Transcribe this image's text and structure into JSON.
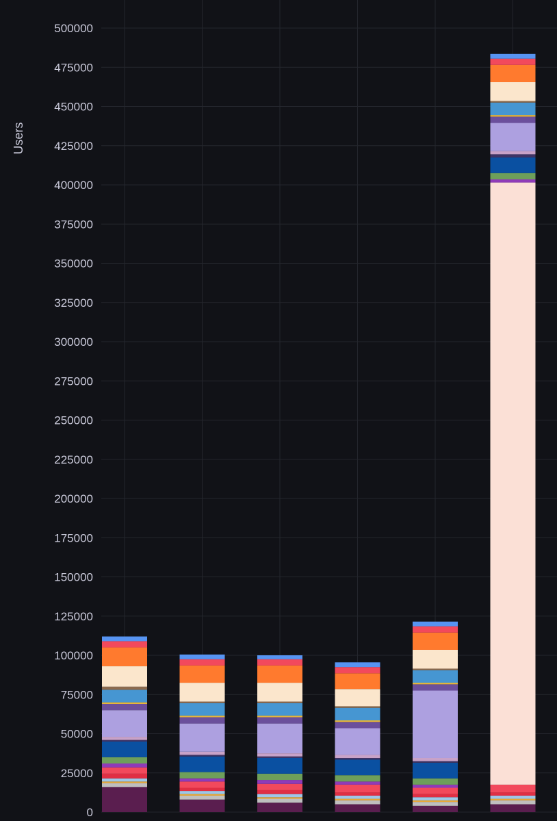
{
  "chart_data": {
    "type": "bar",
    "stacked": true,
    "title": "",
    "xlabel": "",
    "ylabel": "Users",
    "ylim": [
      0,
      500000
    ],
    "yticks": [
      0,
      25000,
      50000,
      75000,
      100000,
      125000,
      150000,
      175000,
      200000,
      225000,
      250000,
      275000,
      300000,
      325000,
      350000,
      375000,
      400000,
      425000,
      450000,
      475000,
      500000
    ],
    "grid": true,
    "legend": "none",
    "categories": [
      "",
      "",
      "",
      "",
      "",
      ""
    ],
    "series": [
      {
        "color": "#5a1e4f",
        "values": [
          16000,
          8000,
          6000,
          5000,
          4000,
          5000
        ]
      },
      {
        "color": "#bfbfbf",
        "values": [
          2500,
          2500,
          2500,
          2500,
          2500,
          2500
        ]
      },
      {
        "color": "#e8a838",
        "values": [
          1000,
          1000,
          1000,
          1000,
          1000,
          1000
        ]
      },
      {
        "color": "#9ec7e8",
        "values": [
          2000,
          2000,
          2000,
          2000,
          2000,
          2000
        ]
      },
      {
        "color": "#e02f44",
        "values": [
          3000,
          2000,
          2500,
          2000,
          2000,
          2000
        ]
      },
      {
        "color": "#f2495c",
        "values": [
          4000,
          4000,
          4000,
          5000,
          4000,
          5000
        ]
      },
      {
        "color": "#fade2a",
        "values": [
          0,
          0,
          0,
          0,
          0,
          384000
        ]
      },
      {
        "color": "#8f3bb8",
        "values": [
          2500,
          2000,
          2500,
          2000,
          2000,
          2000
        ]
      },
      {
        "color": "#6e9f5a",
        "values": [
          4000,
          4000,
          4000,
          4000,
          4000,
          4000
        ]
      },
      {
        "color": "#0a50a1",
        "values": [
          10000,
          10000,
          10000,
          10000,
          10000,
          10000
        ]
      },
      {
        "color": "#3e3466",
        "values": [
          1000,
          1000,
          1000,
          1000,
          1000,
          2000
        ]
      },
      {
        "color": "#c8a2c8",
        "values": [
          2000,
          2000,
          2000,
          2000,
          2000,
          2000
        ]
      },
      {
        "color": "#ada0e0",
        "values": [
          17000,
          18000,
          19000,
          17000,
          43000,
          18000
        ]
      },
      {
        "color": "#6b4f9c",
        "values": [
          4000,
          4000,
          4000,
          4000,
          4000,
          4000
        ]
      },
      {
        "color": "#eab839",
        "values": [
          1000,
          1000,
          1000,
          1000,
          1000,
          1000
        ]
      },
      {
        "color": "#4696d2",
        "values": [
          8000,
          8000,
          8000,
          8000,
          8000,
          8000
        ]
      },
      {
        "color": "#8b6a4e",
        "values": [
          2000,
          1000,
          1000,
          1000,
          1000,
          1000
        ]
      },
      {
        "color": "#fbe6cc",
        "values": [
          13000,
          12000,
          12000,
          11000,
          12000,
          12000
        ]
      },
      {
        "color": "#ff7a2e",
        "values": [
          12000,
          11000,
          11000,
          10000,
          11000,
          11000
        ]
      },
      {
        "color": "#f2495c",
        "values": [
          4000,
          4000,
          4000,
          4000,
          4000,
          4000
        ]
      },
      {
        "color": "#5794f2",
        "values": [
          3000,
          3000,
          2500,
          3000,
          3000,
          3000
        ]
      }
    ]
  }
}
